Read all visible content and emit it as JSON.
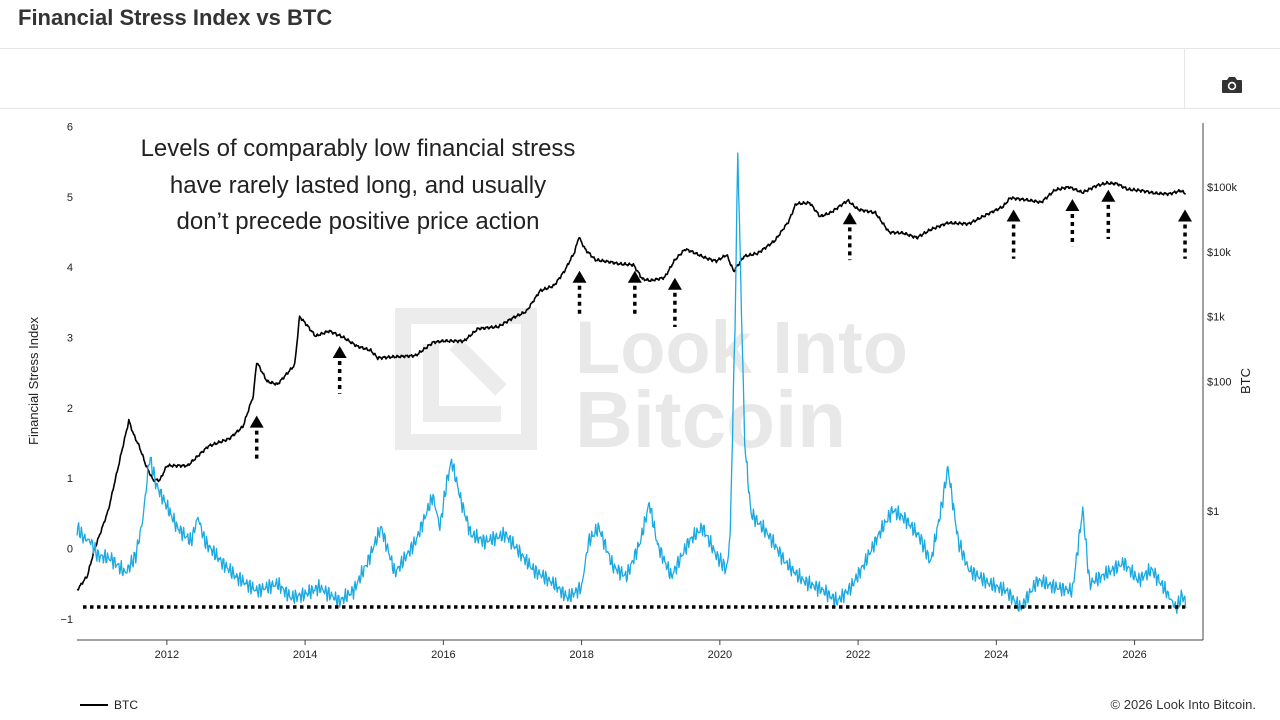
{
  "header": {
    "title": "Financial Stress Index vs BTC"
  },
  "toolbar": {
    "camera_icon": "camera-icon",
    "camera_tooltip": ""
  },
  "watermark": {
    "line1": "Look Into",
    "line2": "Bitcoin"
  },
  "annotation": {
    "lines": [
      "Levels of comparably low financial stress",
      "have rarely lasted long, and usually",
      "don’t precede positive price action"
    ]
  },
  "legend": {
    "btc_label": "BTC"
  },
  "footer": {
    "copyright": "© 2026 Look Into Bitcoin."
  },
  "colors": {
    "fsi_line": "#1aa9e0",
    "btc_line": "#000000",
    "reference_line": "#000000",
    "arrows": "#000000",
    "axis": "#333333",
    "watermark": "#e9e9e9"
  },
  "chart_data": {
    "type": "line",
    "title": "Financial Stress Index vs BTC",
    "xlabel": "",
    "ylabel": "Financial Stress Index",
    "y2label": "BTC",
    "xlim": [
      2010.7,
      2026.99
    ],
    "ylim": [
      -1.3,
      6.05
    ],
    "y2_scale": "log",
    "y2_ticks": [
      {
        "value": 1,
        "label": "$1"
      },
      {
        "value": 100,
        "label": "$100"
      },
      {
        "value": 1000,
        "label": "$1k"
      },
      {
        "value": 10000,
        "label": "$10k"
      },
      {
        "value": 100000,
        "label": "$100k"
      }
    ],
    "x_ticks": [
      "2012",
      "2014",
      "2016",
      "2018",
      "2020",
      "2022",
      "2024",
      "2026"
    ],
    "y_ticks": [
      "−1",
      "0",
      "1",
      "2",
      "3",
      "4",
      "5",
      "6"
    ],
    "grid": false,
    "legend_position": "bottom-left",
    "reference_line": {
      "y": -0.83,
      "style": "dotted",
      "label": ""
    },
    "series": [
      {
        "name": "BTC",
        "axis": "right",
        "points": [
          [
            2010.7,
            0.06
          ],
          [
            2010.85,
            0.1
          ],
          [
            2010.95,
            0.25
          ],
          [
            2011.05,
            0.5
          ],
          [
            2011.15,
            1.0
          ],
          [
            2011.3,
            5
          ],
          [
            2011.45,
            25
          ],
          [
            2011.52,
            15
          ],
          [
            2011.6,
            10
          ],
          [
            2011.7,
            5
          ],
          [
            2011.8,
            3
          ],
          [
            2011.9,
            3
          ],
          [
            2012.0,
            5
          ],
          [
            2012.3,
            5
          ],
          [
            2012.6,
            10
          ],
          [
            2012.9,
            13
          ],
          [
            2013.1,
            20
          ],
          [
            2013.25,
            60
          ],
          [
            2013.3,
            200
          ],
          [
            2013.45,
            100
          ],
          [
            2013.6,
            90
          ],
          [
            2013.85,
            180
          ],
          [
            2013.92,
            1000
          ],
          [
            2014.0,
            800
          ],
          [
            2014.15,
            500
          ],
          [
            2014.35,
            600
          ],
          [
            2014.55,
            480
          ],
          [
            2014.75,
            350
          ],
          [
            2014.95,
            300
          ],
          [
            2015.05,
            230
          ],
          [
            2015.3,
            240
          ],
          [
            2015.6,
            250
          ],
          [
            2015.85,
            400
          ],
          [
            2016.0,
            420
          ],
          [
            2016.3,
            420
          ],
          [
            2016.5,
            650
          ],
          [
            2016.8,
            700
          ],
          [
            2017.0,
            950
          ],
          [
            2017.2,
            1200
          ],
          [
            2017.4,
            2500
          ],
          [
            2017.6,
            3000
          ],
          [
            2017.75,
            5000
          ],
          [
            2017.9,
            10000
          ],
          [
            2017.96,
            17000
          ],
          [
            2018.05,
            11000
          ],
          [
            2018.2,
            7500
          ],
          [
            2018.4,
            7000
          ],
          [
            2018.55,
            6500
          ],
          [
            2018.75,
            6300
          ],
          [
            2018.88,
            3800
          ],
          [
            2019.0,
            3600
          ],
          [
            2019.2,
            4000
          ],
          [
            2019.35,
            7500
          ],
          [
            2019.5,
            11000
          ],
          [
            2019.6,
            10000
          ],
          [
            2019.8,
            8000
          ],
          [
            2019.95,
            7200
          ],
          [
            2020.1,
            9000
          ],
          [
            2020.2,
            5000
          ],
          [
            2020.35,
            8500
          ],
          [
            2020.55,
            9500
          ],
          [
            2020.8,
            15000
          ],
          [
            2021.0,
            30000
          ],
          [
            2021.1,
            55000
          ],
          [
            2021.3,
            57000
          ],
          [
            2021.45,
            35000
          ],
          [
            2021.6,
            40000
          ],
          [
            2021.85,
            62000
          ],
          [
            2022.0,
            45000
          ],
          [
            2022.25,
            40000
          ],
          [
            2022.45,
            20000
          ],
          [
            2022.65,
            19500
          ],
          [
            2022.85,
            16500
          ],
          [
            2023.05,
            22000
          ],
          [
            2023.3,
            28000
          ],
          [
            2023.6,
            27000
          ],
          [
            2023.85,
            37000
          ],
          [
            2024.1,
            50000
          ],
          [
            2024.2,
            68000
          ],
          [
            2024.45,
            63000
          ],
          [
            2024.65,
            58000
          ],
          [
            2024.85,
            90000
          ],
          [
            2025.05,
            100000
          ],
          [
            2025.25,
            82000
          ],
          [
            2025.45,
            105000
          ],
          [
            2025.6,
            115000
          ],
          [
            2025.75,
            112000
          ],
          [
            2025.9,
            92000
          ],
          [
            2026.1,
            88000
          ],
          [
            2026.3,
            80000
          ],
          [
            2026.5,
            78000
          ],
          [
            2026.67,
            88000
          ],
          [
            2026.74,
            78000
          ]
        ]
      },
      {
        "name": "Financial Stress Index",
        "axis": "left",
        "points": [
          [
            2010.7,
            0.3
          ],
          [
            2010.8,
            0.15
          ],
          [
            2010.9,
            0.1
          ],
          [
            2011.0,
            -0.1
          ],
          [
            2011.2,
            -0.15
          ],
          [
            2011.4,
            -0.35
          ],
          [
            2011.55,
            -0.1
          ],
          [
            2011.65,
            0.4
          ],
          [
            2011.75,
            1.3
          ],
          [
            2011.85,
            0.9
          ],
          [
            2012.0,
            0.6
          ],
          [
            2012.15,
            0.3
          ],
          [
            2012.35,
            0.1
          ],
          [
            2012.45,
            0.45
          ],
          [
            2012.55,
            0.1
          ],
          [
            2012.8,
            -0.2
          ],
          [
            2013.0,
            -0.4
          ],
          [
            2013.3,
            -0.6
          ],
          [
            2013.6,
            -0.5
          ],
          [
            2013.8,
            -0.7
          ],
          [
            2014.0,
            -0.65
          ],
          [
            2014.2,
            -0.55
          ],
          [
            2014.5,
            -0.75
          ],
          [
            2014.7,
            -0.6
          ],
          [
            2014.9,
            -0.2
          ],
          [
            2015.1,
            0.3
          ],
          [
            2015.3,
            -0.35
          ],
          [
            2015.6,
            0.1
          ],
          [
            2015.85,
            0.75
          ],
          [
            2015.95,
            0.3
          ],
          [
            2016.05,
            0.95
          ],
          [
            2016.12,
            1.25
          ],
          [
            2016.25,
            0.7
          ],
          [
            2016.4,
            0.2
          ],
          [
            2016.6,
            0.1
          ],
          [
            2016.9,
            0.2
          ],
          [
            2017.1,
            -0.05
          ],
          [
            2017.3,
            -0.3
          ],
          [
            2017.6,
            -0.5
          ],
          [
            2017.8,
            -0.7
          ],
          [
            2018.0,
            -0.55
          ],
          [
            2018.1,
            0.1
          ],
          [
            2018.25,
            0.3
          ],
          [
            2018.45,
            -0.25
          ],
          [
            2018.65,
            -0.4
          ],
          [
            2018.85,
            0.1
          ],
          [
            2018.98,
            0.65
          ],
          [
            2019.1,
            0.05
          ],
          [
            2019.3,
            -0.4
          ],
          [
            2019.55,
            0.1
          ],
          [
            2019.75,
            0.3
          ],
          [
            2019.95,
            -0.1
          ],
          [
            2020.1,
            -0.3
          ],
          [
            2020.15,
            0.2
          ],
          [
            2020.22,
            3.2
          ],
          [
            2020.26,
            5.65
          ],
          [
            2020.31,
            3.5
          ],
          [
            2020.36,
            1.5
          ],
          [
            2020.45,
            0.5
          ],
          [
            2020.7,
            0.2
          ],
          [
            2020.95,
            -0.2
          ],
          [
            2021.2,
            -0.45
          ],
          [
            2021.5,
            -0.6
          ],
          [
            2021.7,
            -0.75
          ],
          [
            2021.9,
            -0.55
          ],
          [
            2022.1,
            -0.2
          ],
          [
            2022.3,
            0.2
          ],
          [
            2022.5,
            0.55
          ],
          [
            2022.7,
            0.4
          ],
          [
            2022.9,
            0.15
          ],
          [
            2023.05,
            -0.2
          ],
          [
            2023.2,
            0.55
          ],
          [
            2023.3,
            1.15
          ],
          [
            2023.45,
            0.1
          ],
          [
            2023.6,
            -0.3
          ],
          [
            2023.9,
            -0.5
          ],
          [
            2024.15,
            -0.6
          ],
          [
            2024.35,
            -0.85
          ],
          [
            2024.6,
            -0.45
          ],
          [
            2024.85,
            -0.55
          ],
          [
            2025.1,
            -0.6
          ],
          [
            2025.25,
            0.55
          ],
          [
            2025.35,
            -0.5
          ],
          [
            2025.6,
            -0.35
          ],
          [
            2025.85,
            -0.2
          ],
          [
            2026.05,
            -0.45
          ],
          [
            2026.25,
            -0.3
          ],
          [
            2026.45,
            -0.6
          ],
          [
            2026.6,
            -0.85
          ],
          [
            2026.7,
            -0.65
          ],
          [
            2026.74,
            -0.85
          ]
        ]
      }
    ],
    "annotations": [
      {
        "type": "arrow-up",
        "x": 2013.3,
        "y_top": 1.89,
        "y_bottom": 1.25
      },
      {
        "type": "arrow-up",
        "x": 2014.5,
        "y_top": 2.88,
        "y_bottom": 2.2
      },
      {
        "type": "arrow-up",
        "x": 2017.97,
        "y_top": 3.95,
        "y_bottom": 3.3
      },
      {
        "type": "arrow-up",
        "x": 2018.77,
        "y_top": 3.95,
        "y_bottom": 3.3
      },
      {
        "type": "arrow-up",
        "x": 2019.35,
        "y_top": 3.85,
        "y_bottom": 3.15
      },
      {
        "type": "arrow-up",
        "x": 2021.88,
        "y_top": 4.78,
        "y_bottom": 4.1
      },
      {
        "type": "arrow-up",
        "x": 2024.25,
        "y_top": 4.82,
        "y_bottom": 4.12
      },
      {
        "type": "arrow-up",
        "x": 2025.1,
        "y_top": 4.97,
        "y_bottom": 4.3
      },
      {
        "type": "arrow-up",
        "x": 2025.62,
        "y_top": 5.1,
        "y_bottom": 4.4
      },
      {
        "type": "arrow-up",
        "x": 2026.73,
        "y_top": 4.82,
        "y_bottom": 4.12
      }
    ]
  }
}
